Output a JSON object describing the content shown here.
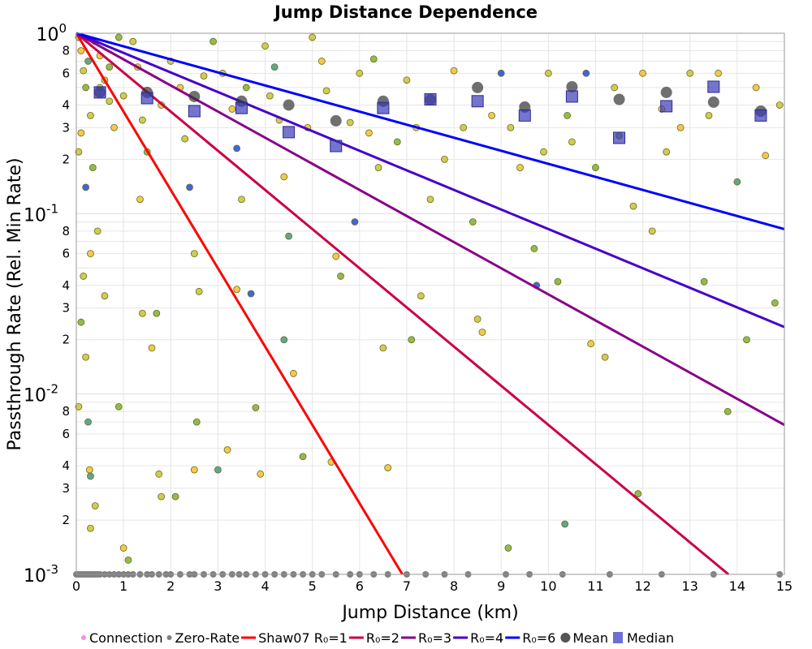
{
  "chart_data": {
    "type": "scatter",
    "title": "Jump Distance Dependence",
    "xlabel": "Jump Distance (km)",
    "ylabel": "Passthrough Rate (Rel. Min Rate)",
    "xlim": [
      0,
      15
    ],
    "ylim": [
      0.001,
      1
    ],
    "yscale": "log",
    "grid": true,
    "x_ticks": [
      "0",
      "1",
      "2",
      "3",
      "4",
      "5",
      "6",
      "7",
      "8",
      "9",
      "10",
      "11",
      "12",
      "13",
      "14",
      "15"
    ],
    "y_decade_ticks": [
      {
        "base": "10",
        "exp": "0",
        "value": 1
      },
      {
        "base": "10",
        "exp": "-1",
        "value": 0.1
      },
      {
        "base": "10",
        "exp": "-2",
        "value": 0.01
      },
      {
        "base": "10",
        "exp": "-3",
        "value": 0.001
      }
    ],
    "y_minor_labels": [
      "2",
      "3",
      "4",
      "6",
      "8"
    ],
    "legend_position": "bottom",
    "legend": [
      {
        "label": "Connection",
        "kind": "dot",
        "color": "#f58ee6"
      },
      {
        "label": "Zero-Rate",
        "kind": "dot",
        "color": "#808080"
      },
      {
        "label": "Shaw07 R₀=1",
        "kind": "line",
        "color": "#ff0000"
      },
      {
        "label": "R₀=2",
        "kind": "line",
        "color": "#cc0044"
      },
      {
        "label": "R₀=3",
        "kind": "line",
        "color": "#880088"
      },
      {
        "label": "R₀=4",
        "kind": "line",
        "color": "#4400cc"
      },
      {
        "label": "R₀=6",
        "kind": "line",
        "color": "#0000ff"
      },
      {
        "label": "Mean",
        "kind": "circle",
        "color": "#555555"
      },
      {
        "label": "Median",
        "kind": "square",
        "color": "#5555cc"
      }
    ],
    "model_lines": {
      "formula": "exp(-d/R0)",
      "series": [
        {
          "name": "Shaw07 R₀=1",
          "R0": 1,
          "color": "#ff0000"
        },
        {
          "name": "R₀=2",
          "R0": 2,
          "color": "#cc0044"
        },
        {
          "name": "R₀=3",
          "R0": 3,
          "color": "#880088"
        },
        {
          "name": "R₀=4",
          "R0": 4,
          "color": "#4400cc"
        },
        {
          "name": "R₀=6",
          "R0": 6,
          "color": "#0000ff"
        }
      ]
    },
    "mean": {
      "x": [
        0.5,
        1.5,
        2.5,
        3.5,
        4.5,
        5.5,
        6.5,
        7.5,
        8.5,
        9.5,
        10.5,
        11.5,
        12.5,
        13.5,
        14.5
      ],
      "y": [
        0.47,
        0.47,
        0.446,
        0.42,
        0.4,
        0.327,
        0.42,
        0.428,
        0.5,
        0.39,
        0.505,
        0.43,
        0.47,
        0.415,
        0.37
      ]
    },
    "median": {
      "x": [
        0.5,
        1.5,
        2.5,
        3.5,
        4.5,
        5.5,
        6.5,
        7.5,
        8.5,
        9.5,
        10.5,
        11.5,
        12.5,
        13.5,
        14.5
      ],
      "y": [
        0.47,
        0.437,
        0.37,
        0.385,
        0.283,
        0.237,
        0.385,
        0.43,
        0.42,
        0.35,
        0.446,
        0.263,
        0.394,
        0.505,
        0.35
      ]
    },
    "point_palette": [
      "#c9c640",
      "#f2c33a",
      "#86b43a",
      "#4f9c86",
      "#2a55e0"
    ],
    "connections": [
      [
        0.05,
        0.95,
        0
      ],
      [
        0.1,
        0.8,
        1
      ],
      [
        0.15,
        0.62,
        0
      ],
      [
        0.2,
        0.5,
        2
      ],
      [
        0.25,
        0.7,
        3
      ],
      [
        0.3,
        0.35,
        0
      ],
      [
        0.1,
        0.28,
        1
      ],
      [
        0.05,
        0.22,
        0
      ],
      [
        0.4,
        0.9,
        0
      ],
      [
        0.35,
        0.18,
        2
      ],
      [
        0.2,
        0.14,
        4
      ],
      [
        0.5,
        0.75,
        1
      ],
      [
        0.6,
        0.55,
        0
      ],
      [
        0.7,
        0.42,
        0
      ],
      [
        0.8,
        0.3,
        1
      ],
      [
        0.9,
        0.95,
        2
      ],
      [
        0.45,
        0.08,
        0
      ],
      [
        0.3,
        0.06,
        1
      ],
      [
        0.15,
        0.045,
        0
      ],
      [
        0.6,
        0.035,
        0
      ],
      [
        0.1,
        0.025,
        2
      ],
      [
        0.2,
        0.016,
        0
      ],
      [
        0.05,
        0.0085,
        0
      ],
      [
        0.25,
        0.007,
        3
      ],
      [
        0.28,
        0.0038,
        1
      ],
      [
        0.3,
        0.0035,
        3
      ],
      [
        0.4,
        0.0024,
        0
      ],
      [
        0.3,
        0.0018,
        0
      ],
      [
        0.9,
        0.0085,
        2
      ],
      [
        1.0,
        0.0014,
        1
      ],
      [
        1.1,
        0.0012,
        2
      ],
      [
        1.2,
        0.9,
        0
      ],
      [
        1.3,
        0.65,
        1
      ],
      [
        1.4,
        0.33,
        0
      ],
      [
        1.5,
        0.22,
        2
      ],
      [
        1.35,
        0.12,
        1
      ],
      [
        1.4,
        0.028,
        0
      ],
      [
        1.6,
        0.018,
        1
      ],
      [
        1.7,
        0.028,
        2
      ],
      [
        1.75,
        0.0036,
        0
      ],
      [
        1.8,
        0.0027,
        0
      ],
      [
        2.1,
        0.0027,
        2
      ],
      [
        2.0,
        0.7,
        0
      ],
      [
        2.2,
        0.5,
        1
      ],
      [
        2.3,
        0.26,
        0
      ],
      [
        2.4,
        0.14,
        4
      ],
      [
        2.5,
        0.06,
        0
      ],
      [
        2.6,
        0.037,
        0
      ],
      [
        2.55,
        0.007,
        2
      ],
      [
        2.5,
        0.0038,
        1
      ],
      [
        3.0,
        0.0038,
        3
      ],
      [
        3.2,
        0.0049,
        1
      ],
      [
        2.9,
        0.9,
        2
      ],
      [
        3.1,
        0.6,
        0
      ],
      [
        3.3,
        0.38,
        1
      ],
      [
        3.4,
        0.23,
        4
      ],
      [
        3.5,
        0.12,
        0
      ],
      [
        3.4,
        0.038,
        1
      ],
      [
        3.7,
        0.036,
        4
      ],
      [
        3.8,
        0.0084,
        2
      ],
      [
        3.9,
        0.0036,
        1
      ],
      [
        4.0,
        0.85,
        0
      ],
      [
        4.2,
        0.65,
        3
      ],
      [
        4.3,
        0.33,
        0
      ],
      [
        4.4,
        0.16,
        1
      ],
      [
        4.5,
        0.075,
        3
      ],
      [
        4.4,
        0.02,
        3
      ],
      [
        4.6,
        0.013,
        1
      ],
      [
        4.8,
        0.0045,
        2
      ],
      [
        5.0,
        0.95,
        0
      ],
      [
        5.2,
        0.7,
        1
      ],
      [
        5.3,
        0.48,
        0
      ],
      [
        5.5,
        0.058,
        1
      ],
      [
        5.6,
        0.045,
        2
      ],
      [
        5.4,
        0.0042,
        1
      ],
      [
        5.9,
        0.09,
        4
      ],
      [
        6.0,
        0.6,
        0
      ],
      [
        6.2,
        0.28,
        1
      ],
      [
        6.4,
        0.18,
        0
      ],
      [
        6.5,
        0.018,
        0
      ],
      [
        6.6,
        0.0039,
        1
      ],
      [
        7.0,
        0.55,
        0
      ],
      [
        7.2,
        0.3,
        1
      ],
      [
        7.3,
        0.035,
        0
      ],
      [
        7.1,
        0.02,
        2
      ],
      [
        7.5,
        0.12,
        0
      ],
      [
        8.0,
        0.62,
        1
      ],
      [
        8.2,
        0.3,
        0
      ],
      [
        8.4,
        0.09,
        2
      ],
      [
        8.5,
        0.026,
        0
      ],
      [
        8.6,
        0.022,
        1
      ],
      [
        9.0,
        0.6,
        4
      ],
      [
        9.2,
        0.3,
        0
      ],
      [
        9.15,
        0.0014,
        2
      ],
      [
        9.4,
        0.18,
        1
      ],
      [
        9.7,
        0.064,
        2
      ],
      [
        9.75,
        0.04,
        4
      ],
      [
        10.0,
        0.6,
        0
      ],
      [
        10.2,
        0.042,
        2
      ],
      [
        10.35,
        0.0019,
        3
      ],
      [
        10.5,
        0.25,
        0
      ],
      [
        10.8,
        0.6,
        4
      ],
      [
        10.9,
        0.019,
        1
      ],
      [
        11.0,
        0.18,
        2
      ],
      [
        11.2,
        0.016,
        0
      ],
      [
        11.5,
        0.27,
        2
      ],
      [
        11.8,
        0.11,
        0
      ],
      [
        11.9,
        0.0028,
        2
      ],
      [
        12.0,
        0.6,
        1
      ],
      [
        12.2,
        0.08,
        0
      ],
      [
        12.5,
        0.22,
        0
      ],
      [
        12.8,
        0.3,
        1
      ],
      [
        13.0,
        0.6,
        0
      ],
      [
        13.3,
        0.042,
        2
      ],
      [
        13.6,
        0.6,
        1
      ],
      [
        13.8,
        0.008,
        2
      ],
      [
        14.0,
        0.15,
        3
      ],
      [
        14.2,
        0.02,
        2
      ],
      [
        14.4,
        0.5,
        1
      ],
      [
        14.8,
        0.032,
        2
      ],
      [
        14.9,
        0.4,
        0
      ],
      [
        0.5,
        0.5,
        0
      ],
      [
        0.7,
        0.65,
        2
      ],
      [
        1.0,
        0.45,
        0
      ],
      [
        1.8,
        0.4,
        1
      ],
      [
        2.7,
        0.58,
        0
      ],
      [
        3.6,
        0.5,
        2
      ],
      [
        4.1,
        0.45,
        0
      ],
      [
        4.9,
        0.3,
        1
      ],
      [
        5.8,
        0.32,
        0
      ],
      [
        6.8,
        0.25,
        2
      ],
      [
        7.8,
        0.2,
        0
      ],
      [
        8.8,
        0.35,
        1
      ],
      [
        9.9,
        0.22,
        0
      ],
      [
        10.4,
        0.35,
        2
      ],
      [
        11.4,
        0.5,
        0
      ],
      [
        12.4,
        0.38,
        1
      ],
      [
        13.4,
        0.35,
        0
      ],
      [
        14.6,
        0.21,
        1
      ],
      [
        6.3,
        0.72,
        2
      ]
    ],
    "zero_rate_x": [
      0.0,
      0.05,
      0.1,
      0.15,
      0.2,
      0.25,
      0.3,
      0.35,
      0.4,
      0.45,
      0.5,
      0.6,
      0.7,
      0.8,
      0.9,
      1.0,
      1.1,
      1.2,
      1.35,
      1.5,
      1.6,
      1.75,
      1.9,
      2.0,
      2.2,
      2.4,
      2.5,
      2.7,
      2.9,
      3.1,
      3.3,
      3.45,
      3.6,
      3.8,
      4.0,
      4.2,
      4.4,
      4.6,
      4.8,
      5.0,
      5.2,
      5.5,
      5.8,
      6.0,
      6.3,
      6.6,
      7.0,
      7.4,
      7.8,
      8.3,
      9.1,
      9.6,
      10.3,
      11.3,
      12.4,
      13.5,
      14.9
    ]
  }
}
